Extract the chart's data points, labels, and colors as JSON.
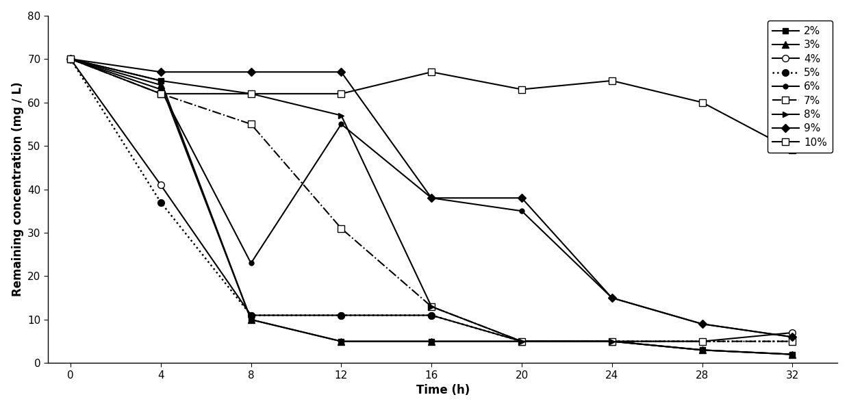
{
  "time": [
    0,
    4,
    8,
    12,
    16,
    20,
    24,
    28,
    32
  ],
  "series": {
    "2%": [
      70,
      65,
      10,
      5,
      5,
      5,
      5,
      3,
      2
    ],
    "3%": [
      70,
      64,
      10,
      5,
      5,
      5,
      5,
      3,
      2
    ],
    "4%": [
      70,
      41,
      11,
      11,
      11,
      5,
      5,
      5,
      7
    ],
    "5%": [
      70,
      37,
      11,
      11,
      11,
      5,
      5,
      5,
      5
    ],
    "6%": [
      70,
      63,
      23,
      55,
      38,
      35,
      15,
      9,
      6
    ],
    "7%": [
      70,
      62,
      55,
      31,
      13,
      5,
      5,
      5,
      5
    ],
    "8%": [
      70,
      65,
      62,
      57,
      13,
      5,
      5,
      3,
      2
    ],
    "9%": [
      70,
      67,
      67,
      67,
      38,
      38,
      15,
      9,
      6
    ],
    "10%": [
      70,
      62,
      62,
      62,
      67,
      63,
      65,
      60,
      49
    ]
  },
  "xlabel": "Time (h)",
  "ylabel": "Remaining concentration (mg / L)",
  "xlim": [
    -1,
    34
  ],
  "ylim": [
    0,
    80
  ],
  "xticks": [
    0,
    4,
    8,
    12,
    16,
    20,
    24,
    28,
    32
  ],
  "yticks": [
    0,
    10,
    20,
    30,
    40,
    50,
    60,
    70,
    80
  ],
  "legend_labels": [
    "2%",
    "3%",
    "4%",
    "5%",
    "6%",
    "7%",
    "8%",
    "9%",
    "10%"
  ],
  "background_color": "#ffffff",
  "axis_fontsize": 12,
  "tick_fontsize": 11
}
